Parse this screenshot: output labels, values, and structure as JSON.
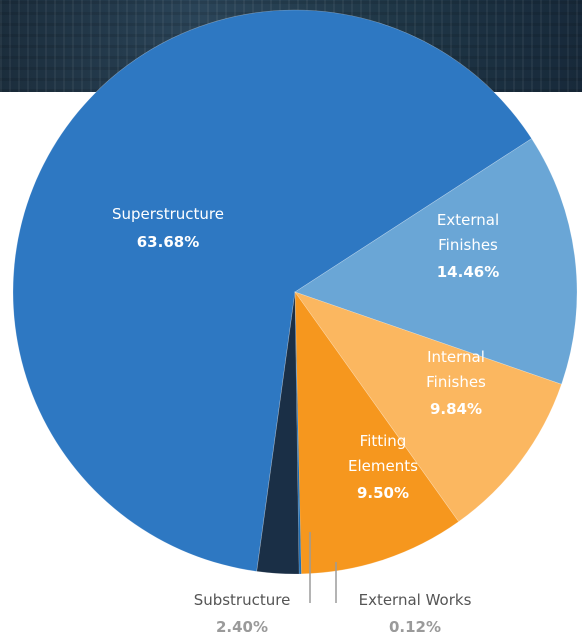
{
  "chart_data": {
    "type": "pie",
    "title": "",
    "slices": [
      {
        "name": "Superstructure",
        "value": 63.68,
        "display": "63.68%",
        "color": "#2e78c2",
        "label_color": "#ffffff",
        "value_color": "#ffffff"
      },
      {
        "name": "External Finishes",
        "value": 14.46,
        "display": "14.46%",
        "color": "#6aa6d6",
        "label_color": "#ffffff",
        "value_color": "#ffffff"
      },
      {
        "name": "Internal Finishes",
        "value": 9.84,
        "display": "9.84%",
        "color": "#fbb760",
        "label_color": "#ffffff",
        "value_color": "#ffffff"
      },
      {
        "name": "Fitting Elements",
        "value": 9.5,
        "display": "9.50%",
        "color": "#f6971e",
        "label_color": "#ffffff",
        "value_color": "#ffffff"
      },
      {
        "name": "External Works",
        "value": 0.12,
        "display": "0.12%",
        "color": "#1f6fb5",
        "label_color": "#555555",
        "value_color": "#9a9a9a"
      },
      {
        "name": "Substructure",
        "value": 2.4,
        "display": "2.40%",
        "color": "#1a2f46",
        "label_color": "#555555",
        "value_color": "#9a9a9a"
      }
    ],
    "legend": "none"
  }
}
